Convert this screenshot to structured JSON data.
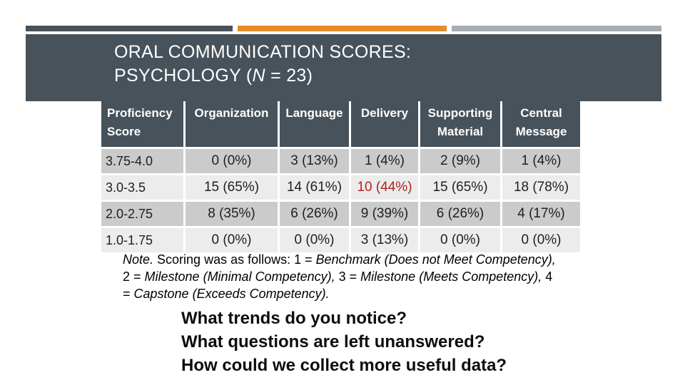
{
  "colors": {
    "accent_dark": "#47525A",
    "accent_orange": "#E28C2B",
    "accent_gray": "#A7ADB3",
    "row_dark": "#CBCBCB",
    "row_light": "#ECECEC",
    "highlight_red": "#B3231F",
    "header_text": "#FFFFFF",
    "body_text": "#1F1F1F"
  },
  "title": {
    "line1": "ORAL COMMUNICATION SCORES:",
    "line2_pre": "PSYCHOLOGY (",
    "line2_italic": "N",
    "line2_post": " = 23)"
  },
  "table": {
    "columns": [
      "Proficiency Score",
      "Organization",
      "Language",
      "Delivery",
      "Supporting Material",
      "Central Message"
    ],
    "rows": [
      {
        "label": "3.75-4.0",
        "values": [
          "0 (0%)",
          "3 (13%)",
          "1 (4%)",
          "2 (9%)",
          "1 (4%)"
        ]
      },
      {
        "label": "3.0-3.5",
        "values": [
          "15 (65%)",
          "14 (61%)",
          "10 (44%)",
          "15 (65%)",
          "18 (78%)"
        ]
      },
      {
        "label": "2.0-2.75",
        "values": [
          "8 (35%)",
          "6 (26%)",
          "9 (39%)",
          "6 (26%)",
          "4 (17%)"
        ]
      },
      {
        "label": "1.0-1.75",
        "values": [
          "0 (0%)",
          "0 (0%)",
          "3 (13%)",
          "0 (0%)",
          "0 (0%)"
        ]
      }
    ]
  },
  "note": {
    "line1_italic1": "Note.",
    "line1_normal1": " Scoring was as follows: 1 = ",
    "line1_italic2": "Benchmark (Does not Meet Competency),",
    "line2_normal1": "2 = ",
    "line2_italic1": "Milestone (Minimal Competency),",
    "line2_normal2": " 3 = ",
    "line2_italic2": "Milestone (Meets Competency),",
    "line2_normal3": " 4",
    "line3_normal1": "= ",
    "line3_italic1": "Capstone (Exceeds Competency)."
  },
  "questions": {
    "q1": "What trends do you notice?",
    "q2": "What questions are left unanswered?",
    "q3": "How could we collect more useful data?"
  }
}
